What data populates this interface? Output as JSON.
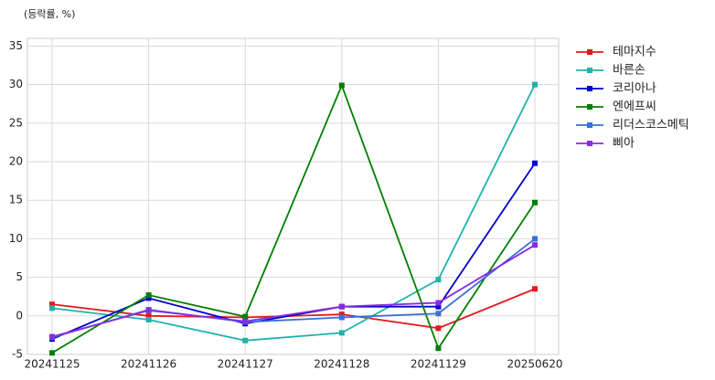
{
  "chart_data": {
    "type": "line",
    "annotation": "(등락률, %)",
    "categories": [
      "20241125",
      "20241126",
      "20241127",
      "20241128",
      "20241129",
      "20250620"
    ],
    "series": [
      {
        "name": "테마지수",
        "color": "#e31a1c",
        "values": [
          1.5,
          0.0,
          -0.2,
          0.2,
          -1.6,
          3.5
        ]
      },
      {
        "name": "바른손",
        "color": "#20b2aa",
        "values": [
          1.0,
          -0.5,
          -3.2,
          -2.2,
          4.7,
          30.0
        ]
      },
      {
        "name": "코리아나",
        "color": "#0000cd",
        "values": [
          -3.0,
          2.3,
          -1.0,
          1.2,
          1.2,
          19.8
        ]
      },
      {
        "name": "엔에프씨",
        "color": "#008000",
        "values": [
          -4.8,
          2.7,
          -0.1,
          29.9,
          -4.2,
          14.7
        ]
      },
      {
        "name": "리더스코스메틱",
        "color": "#3a6fd8",
        "values": [
          -2.8,
          0.8,
          -0.8,
          -0.2,
          0.3,
          10.0
        ]
      },
      {
        "name": "삐아",
        "color": "#8a2be2",
        "values": [
          -2.7,
          0.7,
          -0.7,
          1.2,
          1.7,
          9.2
        ]
      }
    ],
    "ylim": [
      -5,
      36
    ],
    "yticks": [
      -5,
      0,
      5,
      10,
      15,
      20,
      25,
      30,
      35
    ],
    "grid": true,
    "legend": "upper right outside"
  }
}
